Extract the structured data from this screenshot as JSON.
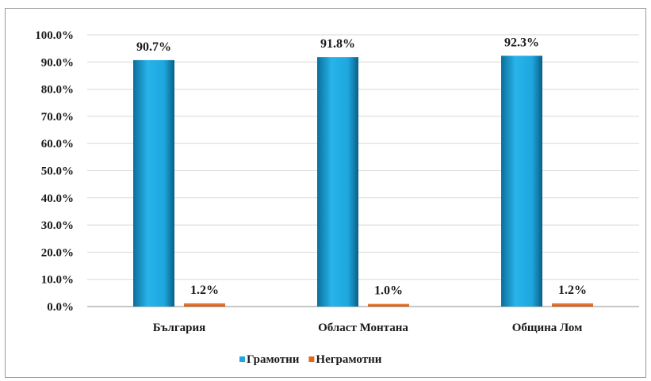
{
  "chart_data": {
    "type": "bar",
    "categories": [
      "България",
      "Област Монтана",
      "Община Лом"
    ],
    "series": [
      {
        "name": "Грамотни",
        "values": [
          90.7,
          91.8,
          92.3
        ],
        "color": "#1da7de"
      },
      {
        "name": "Неграмотни",
        "values": [
          1.2,
          1.0,
          1.2
        ],
        "color": "#e2661c"
      }
    ],
    "data_labels": [
      [
        "90.7%",
        "91.8%",
        "92.3%"
      ],
      [
        "1.2%",
        "1.0%",
        "1.2%"
      ]
    ],
    "y_ticks": [
      "0.0%",
      "10.0%",
      "20.0%",
      "30.0%",
      "40.0%",
      "50.0%",
      "60.0%",
      "70.0%",
      "80.0%",
      "90.0%",
      "100.0%"
    ],
    "ylim": [
      0,
      100
    ],
    "grid": true,
    "legend_position": "bottom",
    "title": "",
    "xlabel": "",
    "ylabel": ""
  }
}
